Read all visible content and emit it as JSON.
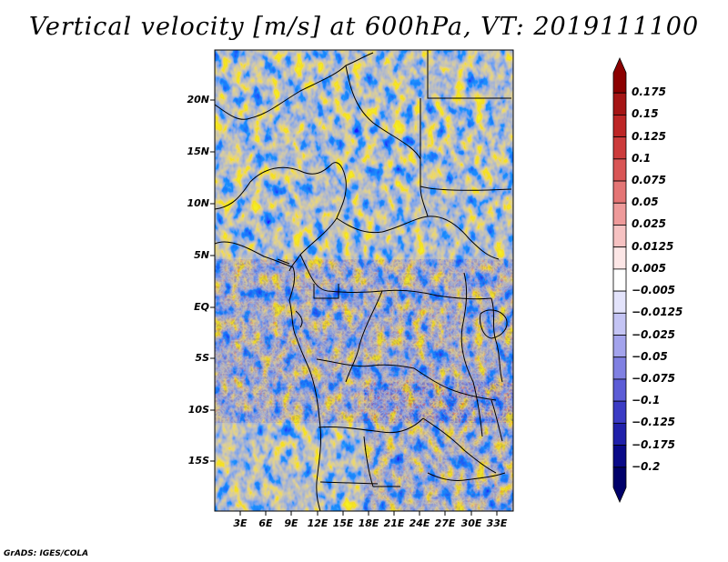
{
  "title": "Vertical velocity [m/s] at 600hPa, VT: 2019111100",
  "footer": "GrADS: IGES/COLA",
  "map": {
    "lat_labels": [
      "20N",
      "15N",
      "10N",
      "5N",
      "EQ",
      "5S",
      "10S",
      "15S"
    ],
    "lon_labels": [
      "3E",
      "6E",
      "9E",
      "12E",
      "15E",
      "18E",
      "21E",
      "24E",
      "27E",
      "30E",
      "33E"
    ]
  },
  "colorbar": {
    "levels": [
      "0.175",
      "0.15",
      "0.125",
      "0.1",
      "0.075",
      "0.05",
      "0.025",
      "0.0125",
      "0.005",
      "−0.005",
      "−0.0125",
      "−0.025",
      "−0.05",
      "−0.075",
      "−0.1",
      "−0.125",
      "−0.175",
      "−0.2"
    ],
    "colors": [
      "#8b0000",
      "#a51515",
      "#bd2626",
      "#cc3b3b",
      "#d95656",
      "#e47575",
      "#ee9a9a",
      "#f6c2c2",
      "#fce6e6",
      "#ffffff",
      "#e3e3fb",
      "#c4c4f4",
      "#a3a3ec",
      "#8080e2",
      "#5c5cd6",
      "#3b3bc4",
      "#2020aa",
      "#0a0a88",
      "#00006a"
    ]
  },
  "chart_data": {
    "type": "heatmap",
    "title": "Vertical velocity [m/s] at 600hPa, VT: 2019111100",
    "variable": "Vertical velocity",
    "units": "m/s",
    "pressure_level": "600hPa",
    "valid_time": "2019111100",
    "x_ticks": [
      "3E",
      "6E",
      "9E",
      "12E",
      "15E",
      "18E",
      "21E",
      "24E",
      "27E",
      "30E",
      "33E"
    ],
    "y_ticks": [
      "20N",
      "15N",
      "10N",
      "5N",
      "EQ",
      "5S",
      "10S",
      "15S"
    ],
    "color_levels": [
      0.175,
      0.15,
      0.125,
      0.1,
      0.075,
      0.05,
      0.025,
      0.0125,
      0.005,
      -0.005,
      -0.0125,
      -0.025,
      -0.05,
      -0.075,
      -0.1,
      -0.125,
      -0.175,
      -0.2
    ]
  }
}
